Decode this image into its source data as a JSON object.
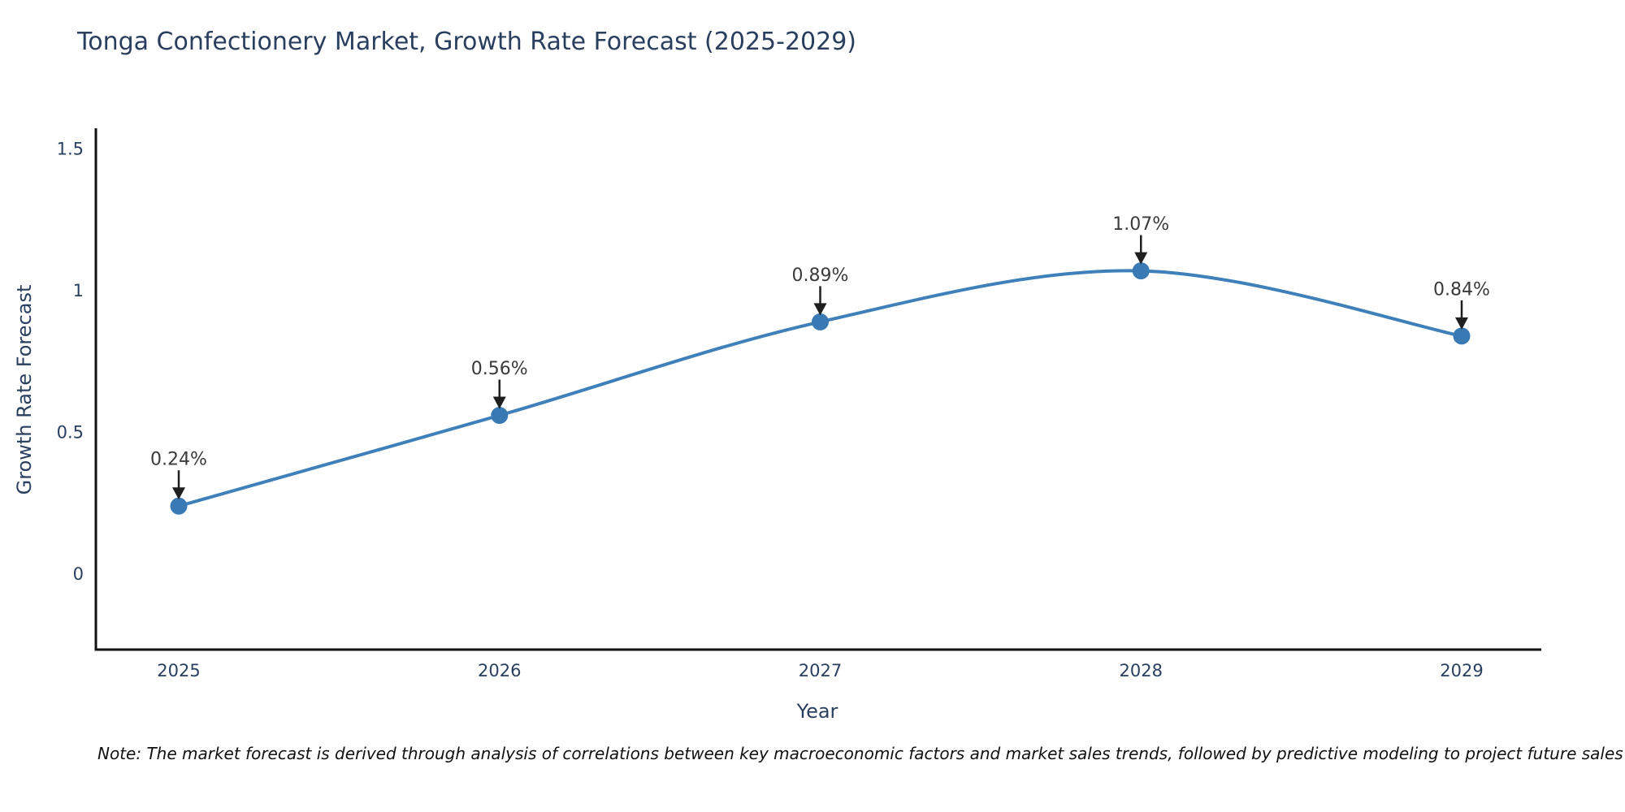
{
  "page": {
    "title": "Tonga Confectionery Market, Growth Rate Forecast (2025-2029)"
  },
  "chart_data": {
    "type": "line",
    "title": "Tonga Confectionery Market, Growth Rate Forecast (2025-2029)",
    "xlabel": "Year",
    "ylabel": "Growth Rate Forecast",
    "categories": [
      "2025",
      "2026",
      "2027",
      "2028",
      "2029"
    ],
    "values": [
      0.24,
      0.56,
      0.89,
      1.07,
      0.84
    ],
    "point_labels": [
      "0.24%",
      "0.56%",
      "0.89%",
      "1.07%",
      "0.84%"
    ],
    "ytick_labels": [
      "1.5",
      "1",
      "0.5",
      "0"
    ],
    "ytick_values": [
      1.5,
      1,
      0.5,
      0
    ],
    "ylim": [
      -0.27,
      1.58
    ],
    "line_shape": "spline",
    "grid": false,
    "legend": "none",
    "colors": {
      "line": "#3f80ba",
      "marker": "#3a7ab4",
      "axis": "#111111",
      "tick_text": "#2a3f5f",
      "annotation_text": "#3a3a3a",
      "arrow": "#1f1f1f",
      "title_text": "#2a3f5f"
    },
    "footnote": "Note: The market forecast is derived through analysis of correlations between key macroeconomic factors and market sales trends, followed by predictive modeling to project future sales"
  }
}
